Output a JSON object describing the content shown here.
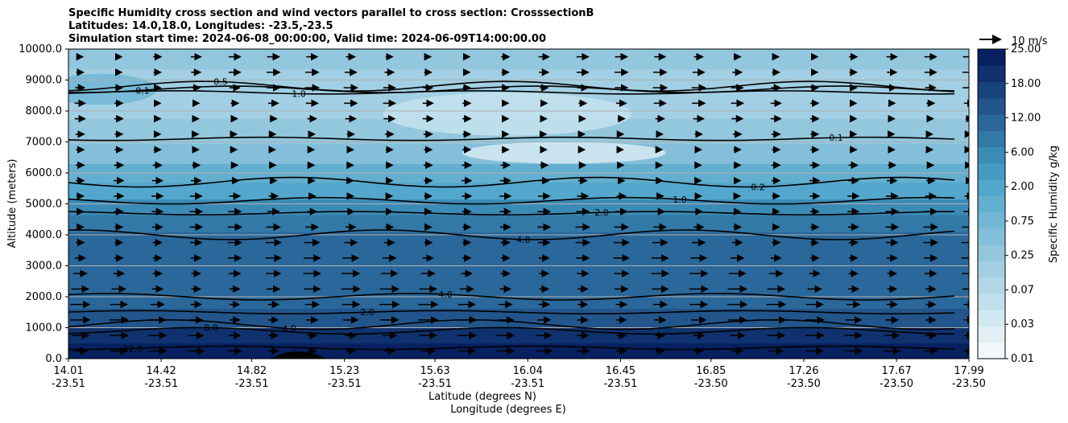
{
  "chart_data": {
    "type": "heatmap",
    "title_lines": [
      "Specific Humidity cross section and wind vectors parallel to cross section: CrosssectionB",
      "Latitudes: 14.0,18.0, Longitudes: -23.5,-23.5",
      "Simulation start time: 2024-06-08_00:00:00, Valid time: 2024-06-09T14:00:00.00"
    ],
    "ylabel": "Altitude (meters)",
    "xlabel_lat": "Latitude (degrees N)",
    "xlabel_lon": "Longitude (degrees E)",
    "ylim": [
      0,
      10000
    ],
    "y_ticks": [
      "0.0",
      "1000.0",
      "2000.0",
      "3000.0",
      "4000.0",
      "5000.0",
      "6000.0",
      "7000.0",
      "8000.0",
      "9000.0",
      "10000.0"
    ],
    "x_ticks": [
      {
        "lat": "14.01",
        "lon": "-23.51"
      },
      {
        "lat": "14.42",
        "lon": "-23.51"
      },
      {
        "lat": "14.82",
        "lon": "-23.51"
      },
      {
        "lat": "15.23",
        "lon": "-23.51"
      },
      {
        "lat": "15.63",
        "lon": "-23.51"
      },
      {
        "lat": "16.04",
        "lon": "-23.51"
      },
      {
        "lat": "16.45",
        "lon": "-23.51"
      },
      {
        "lat": "16.85",
        "lon": "-23.50"
      },
      {
        "lat": "17.26",
        "lon": "-23.50"
      },
      {
        "lat": "17.67",
        "lon": "-23.50"
      },
      {
        "lat": "17.99",
        "lon": "-23.50"
      }
    ],
    "colorbar": {
      "label": "Specific Humidity g/kg",
      "tick_labels": [
        "0.01",
        "0.03",
        "0.07",
        "0.25",
        "0.75",
        "2.00",
        "6.00",
        "12.00",
        "18.00",
        "25.00"
      ],
      "levels": 19
    },
    "wind_reference_label": "10 m/s",
    "humidity_bands": [
      {
        "altitude": 250,
        "level": 18
      },
      {
        "altitude": 750,
        "level": 17
      },
      {
        "altitude": 1250,
        "level": 15
      },
      {
        "altitude": 2000,
        "level": 14
      },
      {
        "altitude": 3000,
        "level": 14
      },
      {
        "altitude": 3800,
        "level": 14
      },
      {
        "altitude": 4400,
        "level": 13
      },
      {
        "altitude": 4900,
        "level": 12
      },
      {
        "altitude": 5400,
        "level": 10
      },
      {
        "altitude": 6000,
        "level": 9
      },
      {
        "altitude": 6600,
        "level": 7
      },
      {
        "altitude": 7300,
        "level": 6
      },
      {
        "altitude": 8200,
        "level": 5
      },
      {
        "altitude": 9000,
        "level": 5
      },
      {
        "altitude": 9700,
        "level": 6
      }
    ],
    "dry_patches": [
      {
        "lat": 15.95,
        "altitude": 7900,
        "lat_radius": 0.55,
        "alt_radius": 700,
        "level": 3
      },
      {
        "lat": 16.2,
        "altitude": 6650,
        "lat_radius": 0.45,
        "alt_radius": 350,
        "level": 2
      },
      {
        "lat": 14.15,
        "altitude": 8700,
        "lat_radius": 0.25,
        "alt_radius": 500,
        "level": 8
      }
    ],
    "contour_lines": [
      {
        "label": "12.0",
        "altitude": 350
      },
      {
        "label": "8.0",
        "altitude": 900
      },
      {
        "label": "4.0",
        "altitude": 1100
      },
      {
        "label": "2.0",
        "altitude": 1500
      },
      {
        "label": "4.0",
        "altitude": 2000
      },
      {
        "label": "4.0",
        "altitude": 4000
      },
      {
        "label": "2.0",
        "altitude": 4700
      },
      {
        "label": "1.0",
        "altitude": 5100
      },
      {
        "label": "0.2",
        "altitude": 5700
      },
      {
        "label": "0.1",
        "altitude": 7100
      },
      {
        "label": "0.1",
        "altitude": 8700
      },
      {
        "label": "0.5",
        "altitude": 8800
      },
      {
        "label": "1.0",
        "altitude": 8600
      }
    ],
    "wind_vectors": {
      "description": "eastward wind vectors, weak near 10000 m and 5000-6000 m, stronger 1000-4500 m",
      "speed_profile": [
        {
          "altitude": 500,
          "speed": 7
        },
        {
          "altitude": 1000,
          "speed": 8
        },
        {
          "altitude": 2000,
          "speed": 8
        },
        {
          "altitude": 3000,
          "speed": 7
        },
        {
          "altitude": 4000,
          "speed": 6
        },
        {
          "altitude": 5000,
          "speed": 5
        },
        {
          "altitude": 6000,
          "speed": 4
        },
        {
          "altitude": 7000,
          "speed": 3
        },
        {
          "altitude": 8000,
          "speed": 5
        },
        {
          "altitude": 9000,
          "speed": 6
        },
        {
          "altitude": 9500,
          "speed": 5
        }
      ]
    }
  }
}
